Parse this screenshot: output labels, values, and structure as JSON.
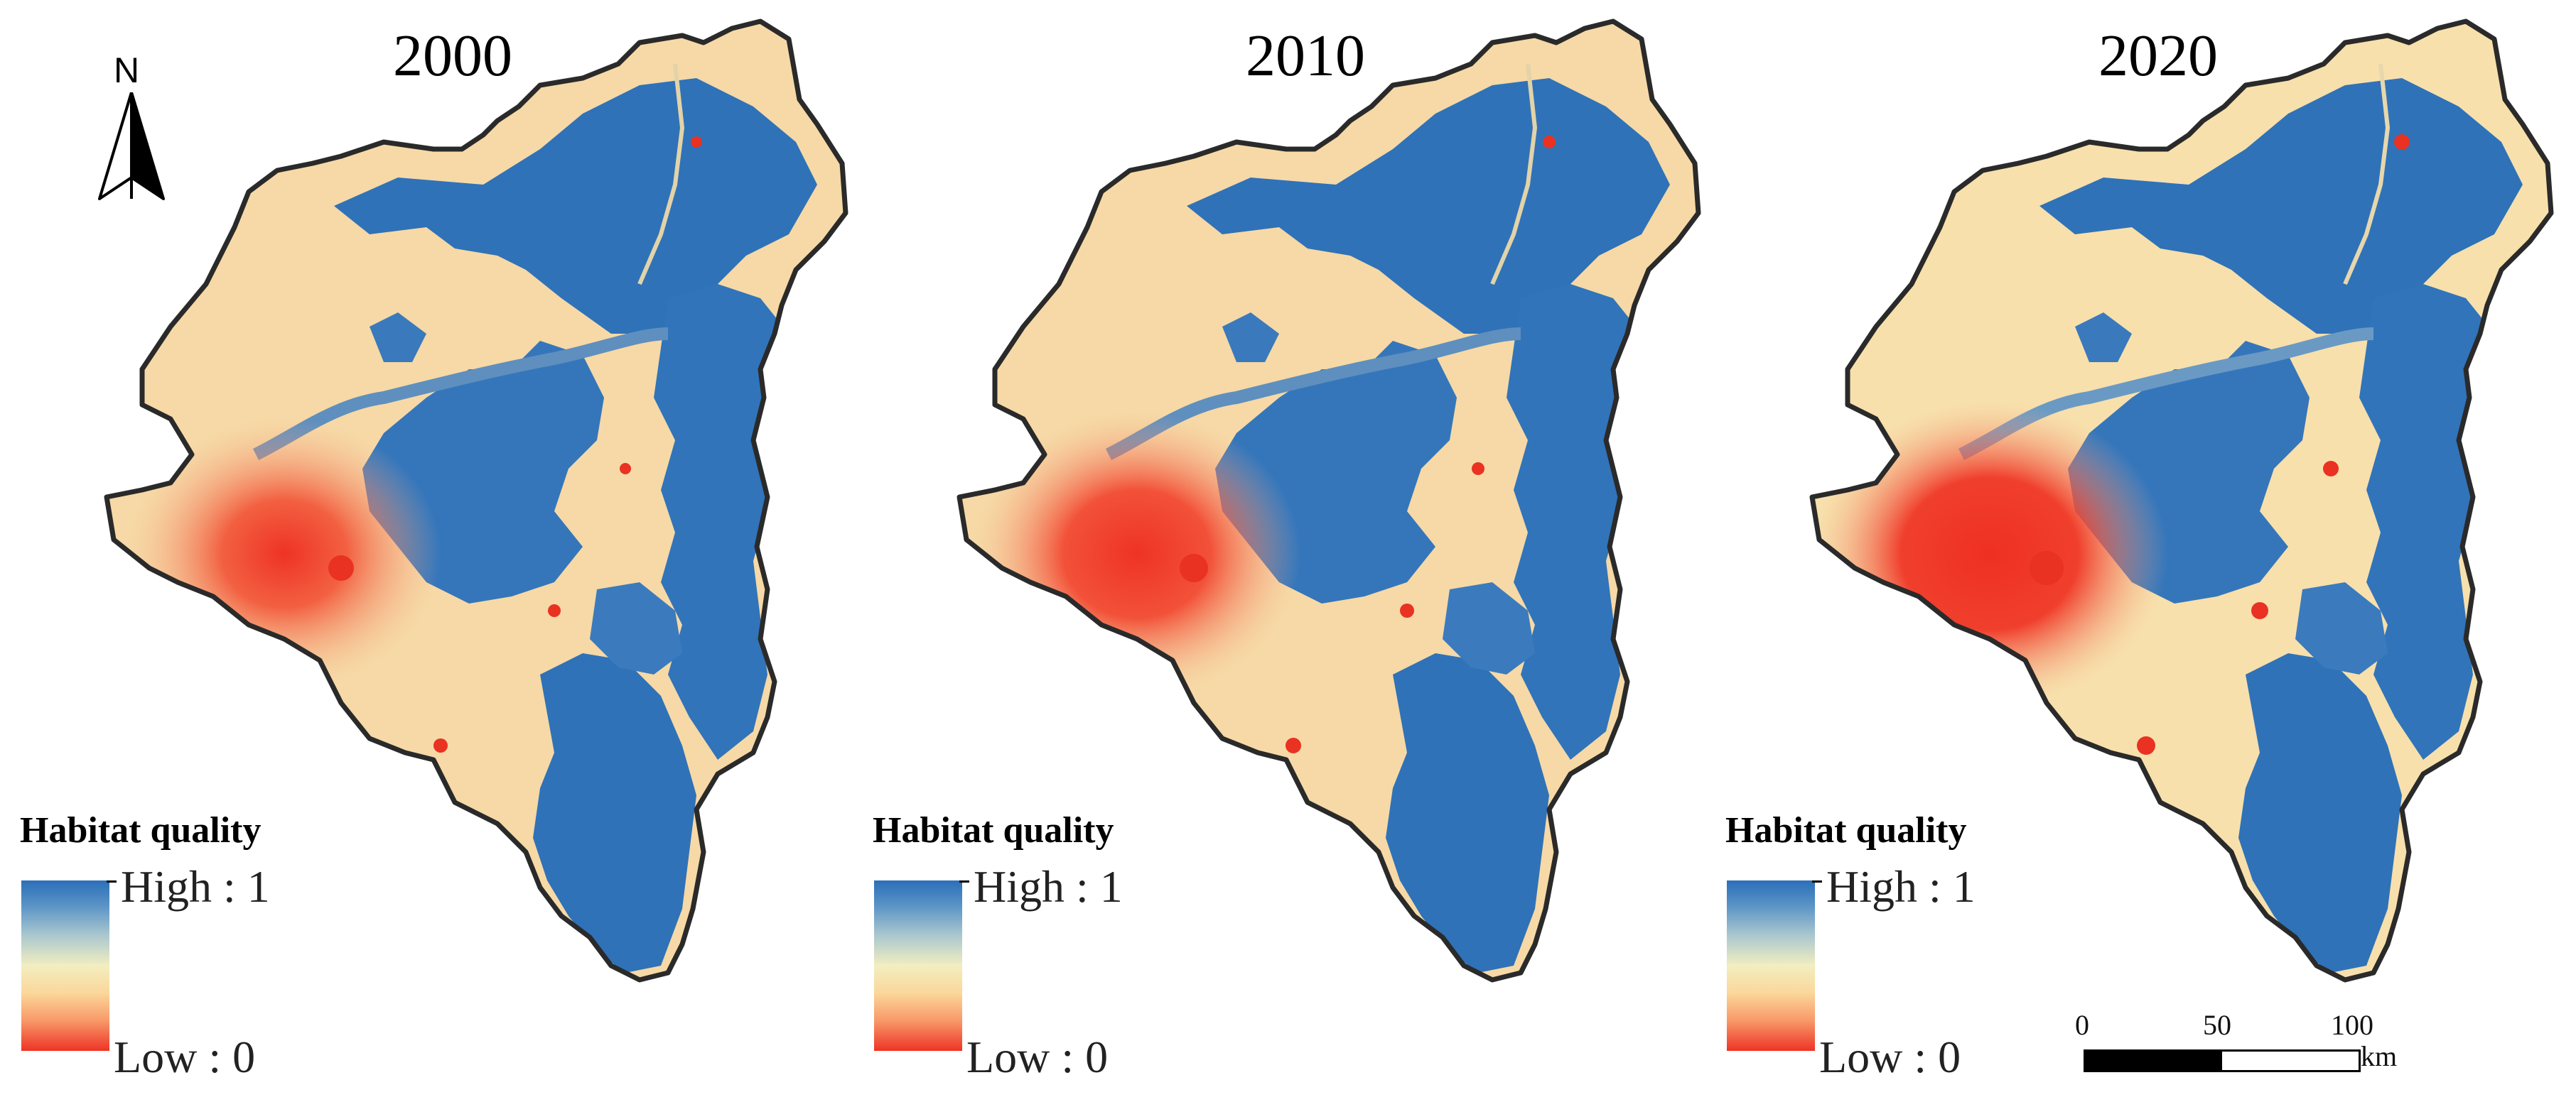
{
  "panels": [
    {
      "year": "2000",
      "urban_intensity": 1.0
    },
    {
      "year": "2010",
      "urban_intensity": 1.15
    },
    {
      "year": "2020",
      "urban_intensity": 1.35
    }
  ],
  "legend": {
    "title": "Habitat quality",
    "high_label": "High : 1",
    "low_label": "Low : 0"
  },
  "north_arrow": {
    "label": "N"
  },
  "scale_bar": {
    "ticks": [
      "0",
      "50",
      "100"
    ],
    "unit": "km"
  },
  "colors": {
    "high": "#2b6fb8",
    "mid": "#f6d9a6",
    "low": "#ee3325",
    "boundary": "#2a2a2a"
  }
}
